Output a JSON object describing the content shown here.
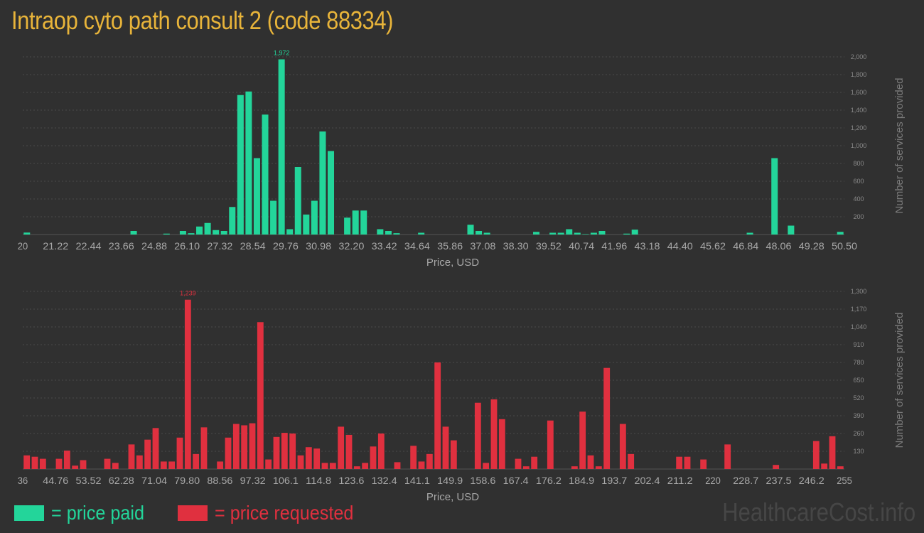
{
  "title": "Intraop cyto path consult 2 (code 88334)",
  "legend": {
    "paid_label": "= price paid",
    "requested_label": "= price requested"
  },
  "watermark": "HealthcareCost.info",
  "colors": {
    "paid": "#23d59a",
    "requested": "#e0303f",
    "title": "#e8b43a",
    "background": "#303030"
  },
  "chart_data": [
    {
      "id": "paid",
      "type": "bar",
      "xlabel": "Price, USD",
      "ylabel": "Number of services provided",
      "ylim": [
        0,
        2000
      ],
      "y_ticks": [
        200,
        400,
        600,
        800,
        1000,
        1200,
        1400,
        1600,
        1800,
        2000
      ],
      "y_tick_labels": [
        "200",
        "400",
        "600",
        "800",
        "1,000",
        "1,200",
        "1,400",
        "1,600",
        "1,800",
        "2,000"
      ],
      "x_tick_labels": [
        "20",
        "21.22",
        "22.44",
        "23.66",
        "24.88",
        "26.10",
        "27.32",
        "28.54",
        "29.76",
        "30.98",
        "32.20",
        "33.42",
        "34.64",
        "35.86",
        "37.08",
        "38.30",
        "39.52",
        "40.74",
        "41.96",
        "43.18",
        "44.40",
        "45.62",
        "46.84",
        "48.06",
        "49.28",
        "50.50"
      ],
      "annotation": "1,972",
      "values": [
        22,
        0,
        0,
        0,
        0,
        0,
        0,
        0,
        0,
        0,
        0,
        0,
        0,
        40,
        0,
        0,
        0,
        10,
        0,
        40,
        15,
        90,
        130,
        50,
        40,
        310,
        1570,
        1610,
        860,
        1350,
        380,
        1972,
        60,
        760,
        225,
        380,
        1160,
        940,
        0,
        190,
        270,
        270,
        0,
        60,
        40,
        15,
        0,
        0,
        20,
        0,
        0,
        0,
        0,
        0,
        110,
        40,
        20,
        0,
        0,
        0,
        0,
        0,
        30,
        0,
        20,
        20,
        60,
        20,
        5,
        20,
        40,
        0,
        0,
        10,
        55,
        0,
        0,
        0,
        0,
        0,
        0,
        0,
        0,
        0,
        0,
        0,
        0,
        0,
        20,
        0,
        0,
        860,
        0,
        100,
        0,
        0,
        0,
        0,
        0,
        30
      ]
    },
    {
      "id": "requested",
      "type": "bar",
      "xlabel": "Price, USD",
      "ylabel": "Number of services provided",
      "ylim": [
        0,
        1300
      ],
      "y_ticks": [
        130,
        260,
        390,
        520,
        650,
        780,
        910,
        1040,
        1170,
        1300
      ],
      "y_tick_labels": [
        "130",
        "260",
        "390",
        "520",
        "650",
        "780",
        "910",
        "1,040",
        "1,170",
        "1,300"
      ],
      "x_tick_labels": [
        "36",
        "44.76",
        "53.52",
        "62.28",
        "71.04",
        "79.80",
        "88.56",
        "97.32",
        "106.1",
        "114.8",
        "123.6",
        "132.4",
        "141.1",
        "149.9",
        "158.6",
        "167.4",
        "176.2",
        "184.9",
        "193.7",
        "202.4",
        "211.2",
        "220",
        "228.7",
        "237.5",
        "246.2",
        "255"
      ],
      "annotation": "1,239",
      "values": [
        100,
        90,
        75,
        0,
        75,
        135,
        25,
        65,
        0,
        0,
        75,
        45,
        0,
        180,
        100,
        215,
        300,
        55,
        55,
        230,
        1239,
        110,
        305,
        0,
        55,
        230,
        330,
        320,
        335,
        1075,
        70,
        235,
        265,
        260,
        100,
        160,
        150,
        45,
        45,
        310,
        250,
        20,
        45,
        165,
        260,
        0,
        50,
        0,
        170,
        55,
        110,
        780,
        310,
        210,
        0,
        0,
        485,
        45,
        510,
        365,
        0,
        75,
        20,
        90,
        0,
        355,
        0,
        0,
        20,
        420,
        100,
        20,
        740,
        0,
        330,
        110,
        0,
        0,
        0,
        0,
        0,
        90,
        90,
        0,
        70,
        0,
        0,
        180,
        0,
        0,
        0,
        0,
        0,
        30,
        0,
        0,
        0,
        0,
        205,
        40,
        240,
        20
      ]
    }
  ]
}
